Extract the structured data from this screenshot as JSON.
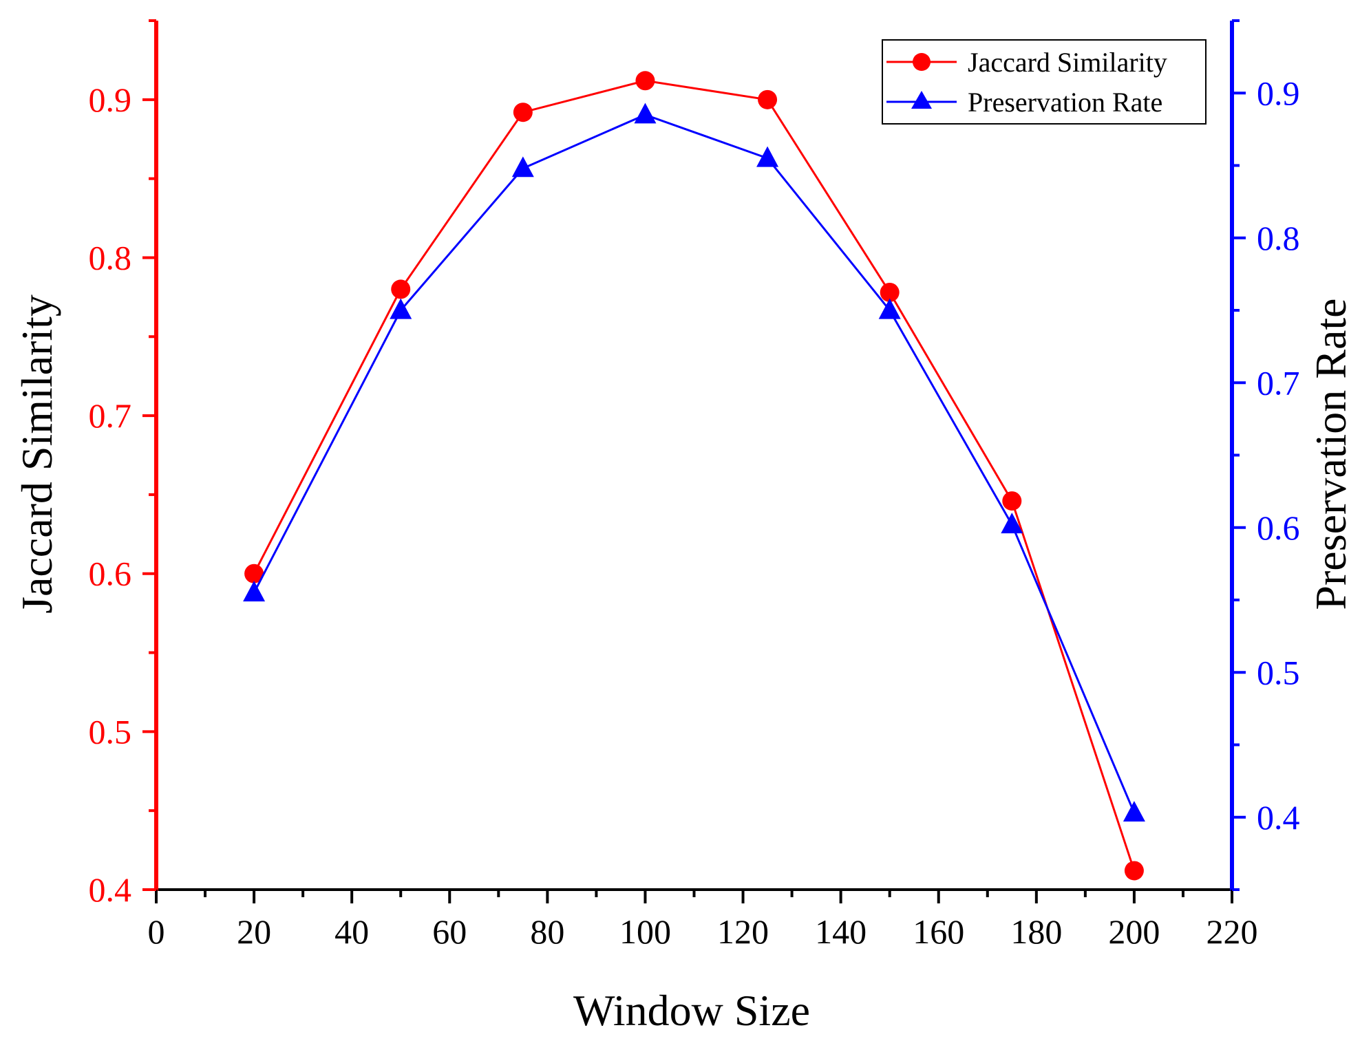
{
  "chart_data": {
    "type": "line",
    "title": "",
    "xlabel": "Window Size",
    "ylabel_left": "Jaccard Similarity",
    "ylabel_right": "Preservation Rate",
    "x": [
      20,
      50,
      75,
      100,
      125,
      150,
      175,
      200
    ],
    "xlim": [
      0,
      220
    ],
    "x_ticks": [
      0,
      20,
      40,
      60,
      80,
      100,
      120,
      140,
      160,
      180,
      200,
      220
    ],
    "ylim_left": [
      0.4,
      0.95
    ],
    "y_ticks_left": [
      "0.4",
      "0.5",
      "0.6",
      "0.7",
      "0.8",
      "0.9"
    ],
    "ylim_right": [
      0.35,
      0.95
    ],
    "y_ticks_right": [
      "0.4",
      "0.5",
      "0.6",
      "0.7",
      "0.8",
      "0.9"
    ],
    "left_axis_color": "#ff0000",
    "right_axis_color": "#0000ff",
    "grid": false,
    "legend_position": "top-right",
    "series": [
      {
        "name": "Jaccard Similarity",
        "axis": "left",
        "marker": "circle",
        "color": "#ff0000",
        "values": [
          0.6,
          0.78,
          0.892,
          0.912,
          0.9,
          0.778,
          0.646,
          0.412
        ]
      },
      {
        "name": "Preservation Rate",
        "axis": "right",
        "marker": "triangle",
        "color": "#0000ff",
        "values": [
          0.555,
          0.75,
          0.848,
          0.885,
          0.855,
          0.75,
          0.602,
          0.403
        ]
      }
    ]
  }
}
